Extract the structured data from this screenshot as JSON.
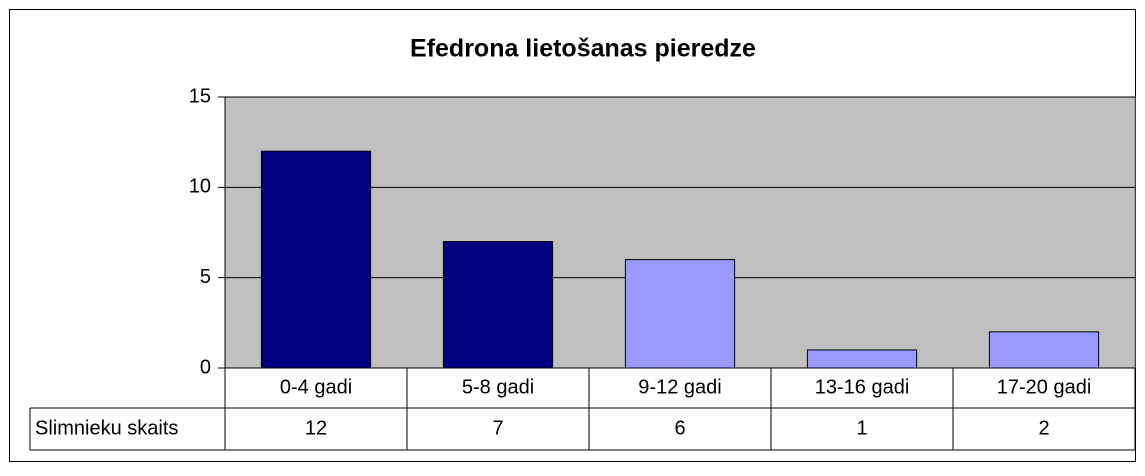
{
  "chart_data": {
    "type": "bar",
    "title": "Efedrona lietošanas pieredze",
    "categories": [
      "0-4 gadi",
      "5-8 gadi",
      "9-12 gadi",
      "13-16 gadi",
      "17-20 gadi"
    ],
    "series": [
      {
        "name": "Slimnieku skaits",
        "values": [
          12,
          7,
          6,
          1,
          2
        ],
        "colors": [
          "#000080",
          "#000080",
          "#9999ff",
          "#9999ff",
          "#9999ff"
        ]
      }
    ],
    "ylim": [
      0,
      15
    ],
    "yticks": [
      0,
      5,
      10,
      15
    ],
    "grid": true,
    "data_table": true
  }
}
